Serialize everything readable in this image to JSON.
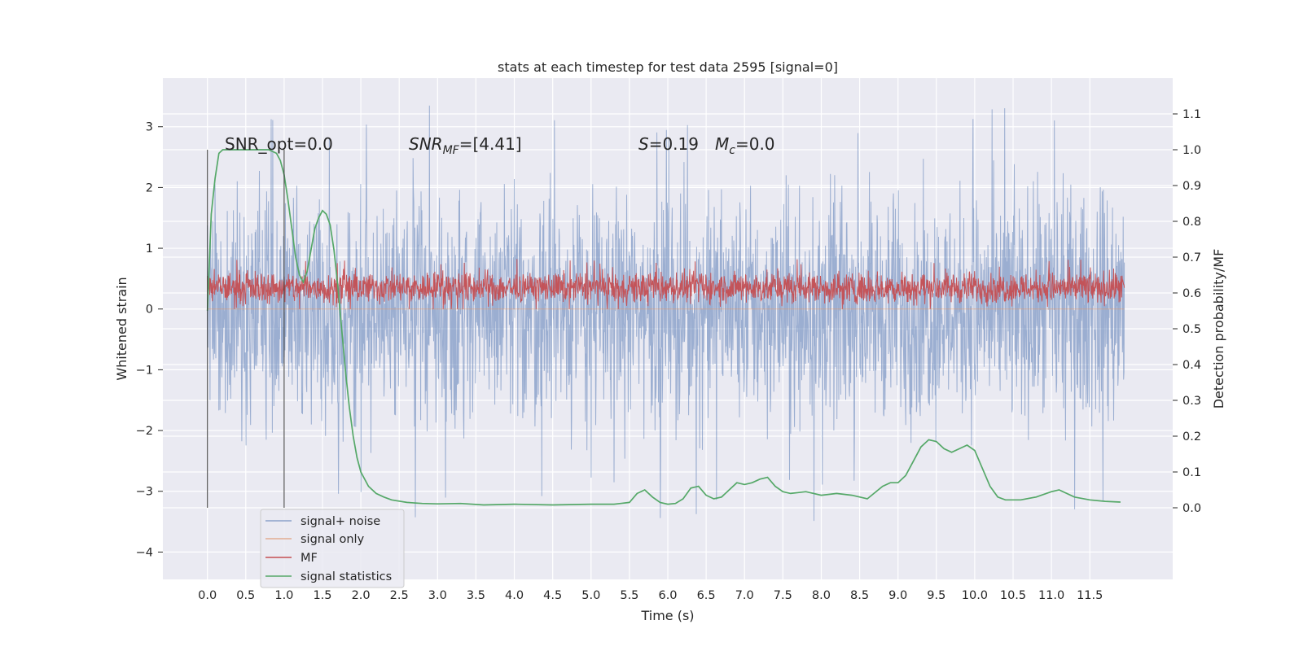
{
  "chart_data": {
    "type": "line",
    "title": "stats at each timestep for test data 2595 [signal=0]",
    "xlabel": "Time (s)",
    "ylabel": "Whitened strain",
    "y2label": "Detection probability/MF",
    "xlim": [
      -0.58,
      12.58
    ],
    "ylim": [
      -4.45,
      3.8
    ],
    "y2lim": [
      -0.2,
      1.2
    ],
    "x_ticks": [
      0.0,
      0.5,
      1.0,
      1.5,
      2.0,
      2.5,
      3.0,
      3.5,
      4.0,
      4.5,
      5.0,
      5.5,
      6.0,
      6.5,
      7.0,
      7.5,
      8.0,
      8.5,
      9.0,
      9.5,
      10.0,
      10.5,
      11.0,
      11.5
    ],
    "x_tick_labels": [
      "0.0",
      "0.5",
      "1.0",
      "1.5",
      "2.0",
      "2.5",
      "3.0",
      "3.5",
      "4.0",
      "4.5",
      "5.0",
      "5.5",
      "6.0",
      "6.5",
      "7.0",
      "7.5",
      "8.0",
      "8.5",
      "9.0",
      "9.5",
      "10.0",
      "10.5",
      "11.0",
      "11.5"
    ],
    "y_ticks": [
      -4,
      -3,
      -2,
      -1,
      0,
      1,
      2,
      3
    ],
    "y_tick_labels": [
      "−4",
      "−3",
      "−2",
      "−1",
      "0",
      "1",
      "2",
      "3"
    ],
    "y2_ticks": [
      0.0,
      0.1,
      0.2,
      0.3,
      0.4,
      0.5,
      0.6,
      0.7,
      0.8,
      0.9,
      1.0,
      1.1
    ],
    "y2_tick_labels": [
      "0.0",
      "0.1",
      "0.2",
      "0.3",
      "0.4",
      "0.5",
      "0.6",
      "0.7",
      "0.8",
      "0.9",
      "1.0",
      "1.1"
    ],
    "grid": true,
    "legend_position": "lower-left",
    "annotations": {
      "snr_opt": "SNR_opt=0.0",
      "snr_mf_sym": "SNR",
      "snr_mf_sub": "MF",
      "snr_mf_val": "=[4.41]",
      "s_sym": "S",
      "s_val": "=0.19",
      "mc_sym": "M",
      "mc_sub": "c",
      "mc_val": "=0.0"
    },
    "vertical_lines": [
      0.0,
      1.0
    ],
    "vertical_lines_y2_range": [
      0.0,
      1.0
    ],
    "series": [
      {
        "name": "signal+ noise",
        "color": "#4c72b0",
        "axis": "left",
        "kind": "noise",
        "x_range": [
          0.0,
          11.95
        ],
        "envelope": [
          -2.5,
          2.5
        ],
        "extremes": [
          -3.65,
          3.38
        ]
      },
      {
        "name": "signal only",
        "color": "#dd8452",
        "axis": "left",
        "kind": "flat",
        "x": [
          0.0,
          11.95
        ],
        "y": [
          0.0,
          0.0
        ]
      },
      {
        "name": "MF",
        "color": "#c44e52",
        "axis": "left",
        "kind": "noise",
        "x_range": [
          0.0,
          11.95
        ],
        "envelope": [
          0.0,
          0.7
        ],
        "extremes": [
          0.0,
          1.0
        ]
      },
      {
        "name": "signal statistics",
        "color": "#55a868",
        "axis": "right",
        "kind": "line",
        "x": [
          0.0,
          0.05,
          0.1,
          0.15,
          0.2,
          0.3,
          0.5,
          0.8,
          0.9,
          0.95,
          1.0,
          1.05,
          1.1,
          1.15,
          1.2,
          1.25,
          1.3,
          1.35,
          1.4,
          1.45,
          1.5,
          1.55,
          1.6,
          1.65,
          1.7,
          1.75,
          1.8,
          1.85,
          1.9,
          1.95,
          2.0,
          2.1,
          2.2,
          2.3,
          2.4,
          2.6,
          2.8,
          3.0,
          3.3,
          3.6,
          4.0,
          4.5,
          5.0,
          5.3,
          5.5,
          5.6,
          5.7,
          5.8,
          5.9,
          6.0,
          6.1,
          6.2,
          6.3,
          6.4,
          6.5,
          6.6,
          6.7,
          6.8,
          6.9,
          7.0,
          7.1,
          7.2,
          7.3,
          7.4,
          7.5,
          7.6,
          7.8,
          8.0,
          8.2,
          8.4,
          8.6,
          8.8,
          8.9,
          9.0,
          9.1,
          9.2,
          9.3,
          9.4,
          9.5,
          9.6,
          9.7,
          9.8,
          9.9,
          10.0,
          10.1,
          10.2,
          10.3,
          10.4,
          10.6,
          10.8,
          11.0,
          11.1,
          11.3,
          11.5,
          11.7,
          11.9
        ],
        "y": [
          0.55,
          0.82,
          0.92,
          0.99,
          1.0,
          1.0,
          1.0,
          1.0,
          0.99,
          0.97,
          0.93,
          0.86,
          0.78,
          0.7,
          0.65,
          0.63,
          0.66,
          0.72,
          0.78,
          0.81,
          0.83,
          0.82,
          0.79,
          0.72,
          0.62,
          0.5,
          0.38,
          0.28,
          0.2,
          0.14,
          0.1,
          0.06,
          0.04,
          0.03,
          0.022,
          0.015,
          0.012,
          0.011,
          0.012,
          0.008,
          0.01,
          0.008,
          0.01,
          0.01,
          0.015,
          0.04,
          0.05,
          0.03,
          0.015,
          0.01,
          0.012,
          0.025,
          0.055,
          0.06,
          0.035,
          0.025,
          0.03,
          0.05,
          0.07,
          0.065,
          0.07,
          0.08,
          0.085,
          0.06,
          0.045,
          0.04,
          0.045,
          0.035,
          0.04,
          0.035,
          0.025,
          0.06,
          0.07,
          0.07,
          0.09,
          0.13,
          0.17,
          0.19,
          0.185,
          0.165,
          0.155,
          0.165,
          0.175,
          0.16,
          0.11,
          0.06,
          0.03,
          0.022,
          0.022,
          0.03,
          0.045,
          0.05,
          0.03,
          0.022,
          0.018,
          0.016
        ]
      }
    ]
  }
}
